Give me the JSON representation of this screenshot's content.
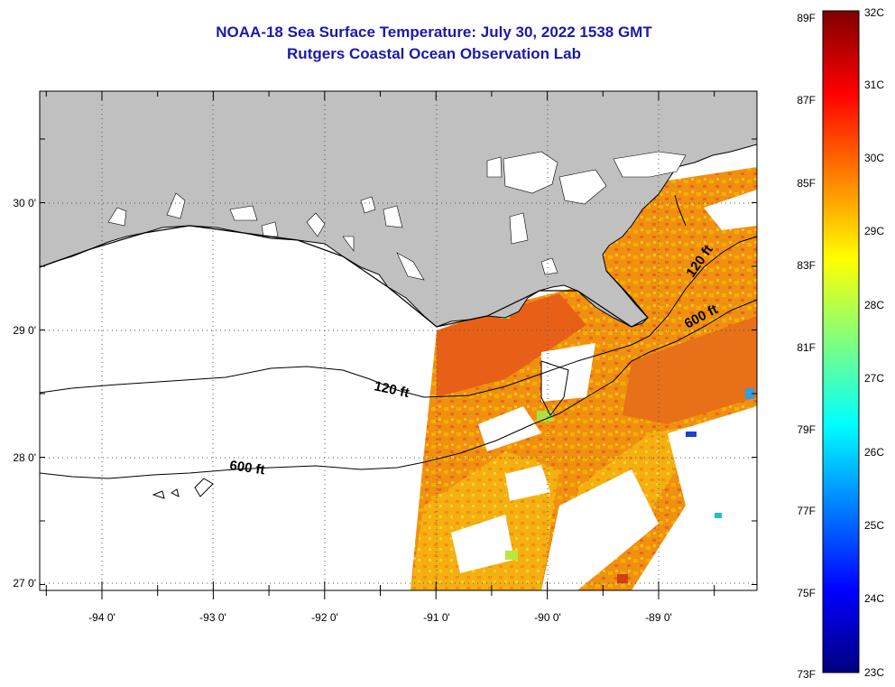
{
  "header": {
    "title": "NOAA-18 Sea Surface Temperature:  July 30, 2022 1538 GMT",
    "subtitle": "Rutgers Coastal Ocean Observation Lab"
  },
  "map": {
    "lon_labels": [
      "-94 0'",
      "-93 0'",
      "-92 0'",
      "-91 0'",
      "-90 0'",
      "-89 0'"
    ],
    "lat_labels": [
      "30 0'",
      "29 0'",
      "28 0'",
      "27 0'"
    ],
    "contour_labels": [
      {
        "id": "c120a",
        "text": "120 ft"
      },
      {
        "id": "c120b",
        "text": "120 ft"
      },
      {
        "id": "c600a",
        "text": "600 ft"
      },
      {
        "id": "c600b",
        "text": "600 ft"
      }
    ],
    "colors": {
      "land": "#c0c0c0",
      "no_data": "#ffffff",
      "warm": "#f08010",
      "hot": "#e85010",
      "mid": "#f4b000",
      "cool_green": "#a0e040",
      "cold_blue": "#2040d0"
    }
  },
  "colorbar": {
    "fahrenheit_labels": [
      "89F",
      "87F",
      "85F",
      "83F",
      "81F",
      "79F",
      "77F",
      "75F",
      "73F"
    ],
    "celsius_labels": [
      "32C",
      "31C",
      "30C",
      "29C",
      "28C",
      "27C",
      "26C",
      "25C",
      "24C",
      "23C"
    ],
    "gradient_stops": [
      "#00007f",
      "#0000ff",
      "#007fff",
      "#00ffff",
      "#7fff7f",
      "#ffff00",
      "#ff7f00",
      "#ff0000",
      "#7f0000"
    ]
  }
}
